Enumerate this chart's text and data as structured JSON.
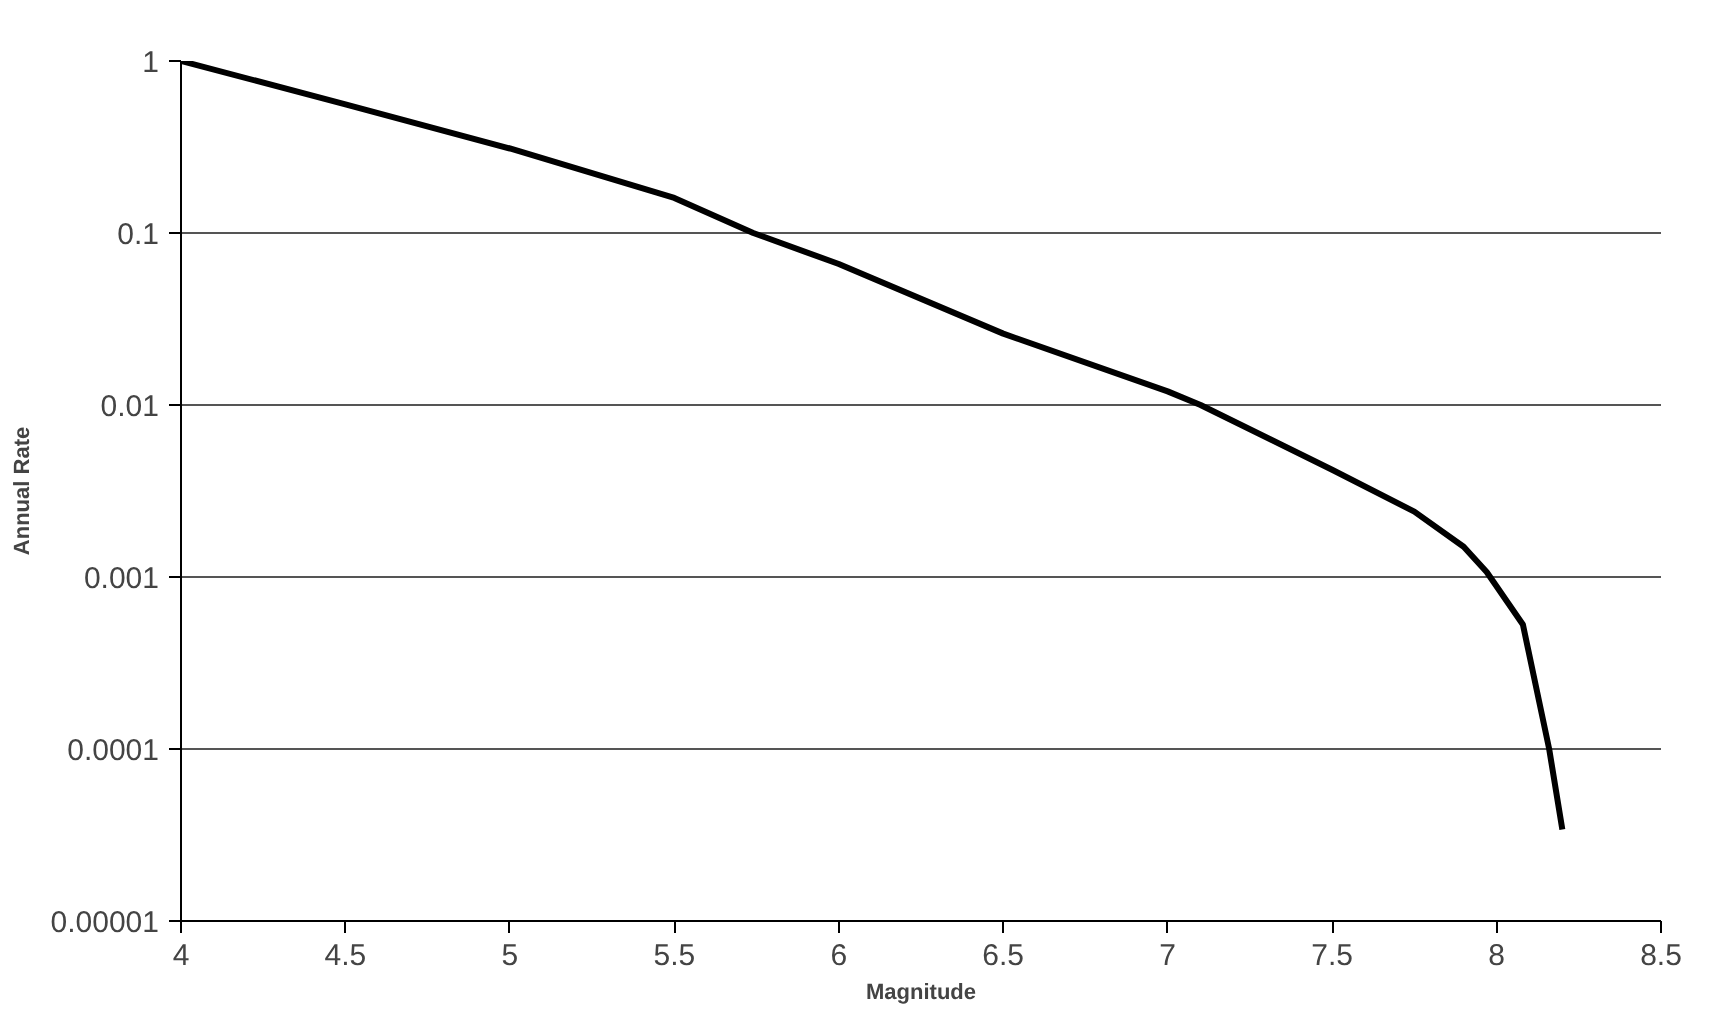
{
  "chart_data": {
    "type": "line",
    "xlabel": "Magnitude",
    "ylabel": "Annual Rate",
    "log": "y",
    "grid": "y",
    "marker": "none",
    "line_style": "solid",
    "series": [
      {
        "color": "#000000",
        "x": [
          4,
          4.5,
          5,
          5.5,
          5.74,
          6,
          6.5,
          7,
          7.1,
          7.5,
          7.75,
          7.9,
          7.97,
          8.08,
          8.16,
          8.2
        ],
        "values": [
          1,
          0.56,
          0.31,
          0.16,
          0.1,
          0.066,
          0.026,
          0.012,
          0.01,
          0.0042,
          0.0024,
          0.0015,
          0.00107,
          0.00053,
          0.0001,
          3.4e-05
        ]
      }
    ],
    "xlim": [
      4,
      8.5
    ],
    "xticks": [
      4,
      4.5,
      5,
      5.5,
      6,
      6.5,
      7,
      7.5,
      8,
      8.5
    ],
    "ylim": [
      1e-05,
      1
    ],
    "yticks": [
      {
        "value": 1e-05,
        "label": "0.00001"
      },
      {
        "value": 0.0001,
        "label": "0.0001"
      },
      {
        "value": 0.001,
        "label": "0.001"
      },
      {
        "value": 0.01,
        "label": "0.01"
      },
      {
        "value": 0.1,
        "label": "0.1"
      },
      1
    ]
  }
}
